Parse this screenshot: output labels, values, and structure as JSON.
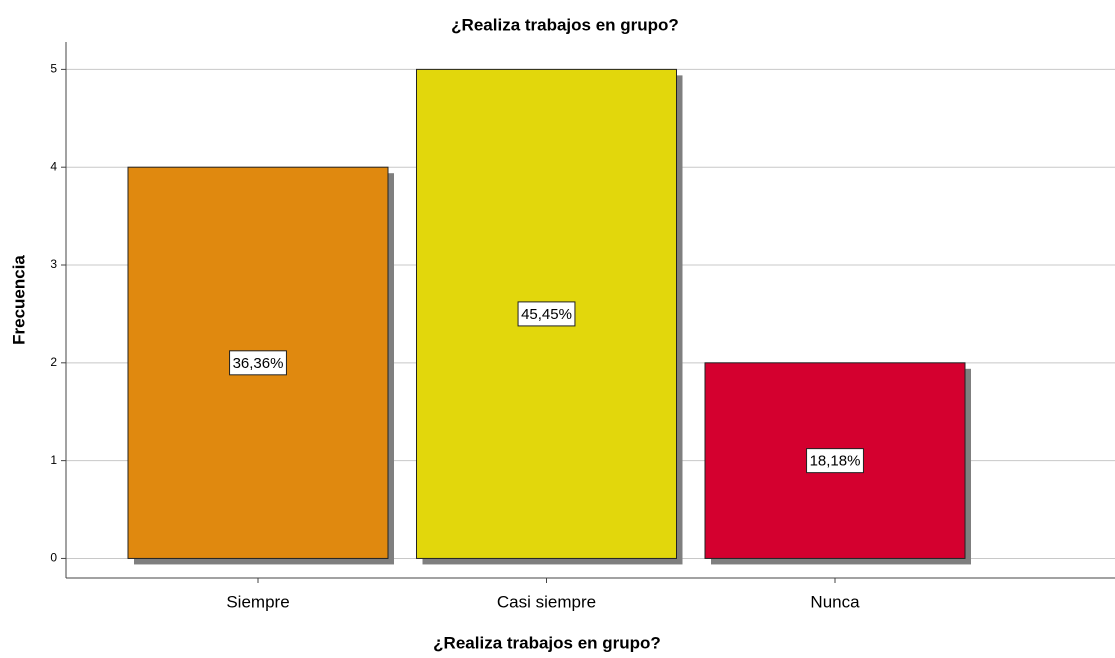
{
  "chart_data": {
    "type": "bar",
    "title": "¿Realiza trabajos en grupo?",
    "x_label": "¿Realiza trabajos en grupo?",
    "y_label": "Frecuencia",
    "categories": [
      "Siempre",
      "Casi siempre",
      "Nunca"
    ],
    "values": [
      4,
      5,
      2
    ],
    "percent_labels": [
      "36,36%",
      "45,45%",
      "18,18%"
    ],
    "colors": [
      "#e0890f",
      "#e2d70c",
      "#d4002f"
    ],
    "ylim": [
      -0.2,
      5.28
    ],
    "yticks": [
      0,
      1,
      2,
      3,
      4,
      5
    ],
    "grid": true
  }
}
